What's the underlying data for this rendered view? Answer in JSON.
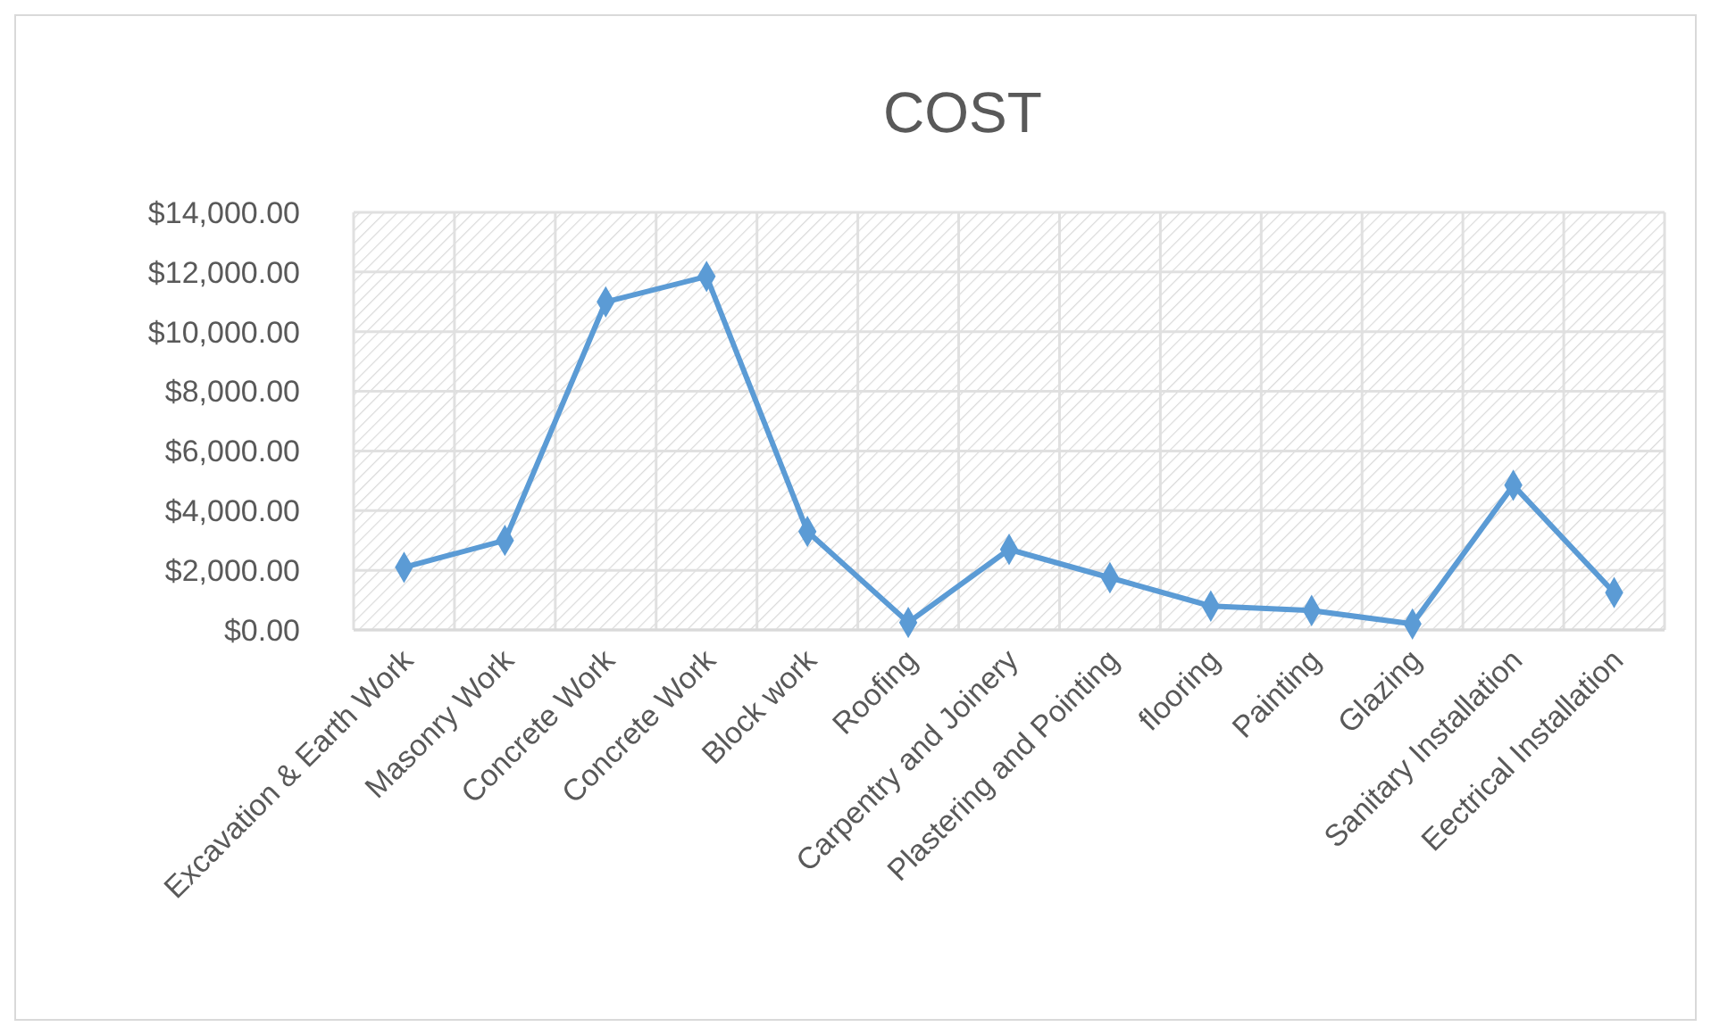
{
  "chart_data": {
    "type": "line",
    "title": "COST",
    "categories": [
      "Excavation & Earth Work",
      "Masonry Work",
      "Concrete Work",
      "Concrete Work",
      "Block work",
      "Roofing",
      "Carpentry and Joinery",
      "Plastering and Pointing",
      "flooring",
      "Painting",
      "Glazing",
      "Sanitary Installation",
      "Eectrical Installation"
    ],
    "series": [
      {
        "color": "#5b9bd5",
        "values": [
          2100,
          3000,
          11000,
          11850,
          3300,
          250,
          2700,
          1750,
          800,
          650,
          200,
          4850,
          1250
        ]
      }
    ],
    "ylim": [
      0,
      14000
    ],
    "yticks": [
      {
        "value": 0,
        "label": "$0.00"
      },
      {
        "value": 2000,
        "label": "$2,000.00"
      },
      {
        "value": 4000,
        "label": "$4,000.00"
      },
      {
        "value": 6000,
        "label": "$6,000.00"
      },
      {
        "value": 8000,
        "label": "$8,000.00"
      },
      {
        "value": 10000,
        "label": "$10,000.00"
      },
      {
        "value": 12000,
        "label": "$12,000.00"
      },
      {
        "value": 14000,
        "label": "$14,000.00"
      }
    ],
    "grid": true,
    "marker": "diamond",
    "line_style": "solid"
  }
}
